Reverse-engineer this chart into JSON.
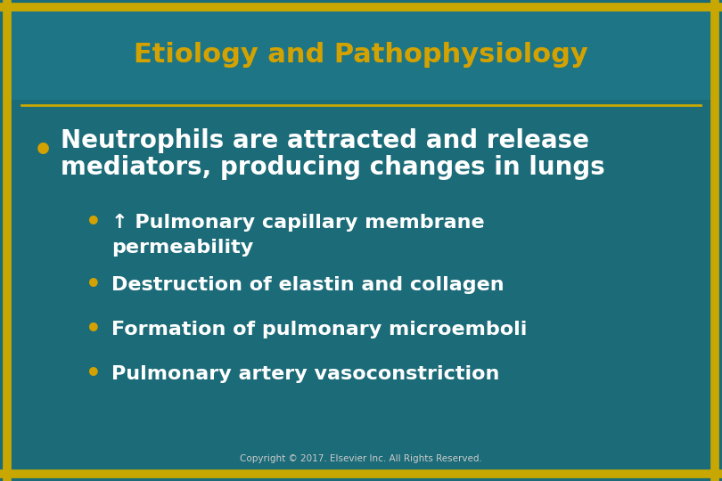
{
  "title": "Etiology and Pathophysiology",
  "title_color": "#D4A200",
  "title_fontsize": 22,
  "background_color": "#1B6B78",
  "border_color": "#C8A800",
  "separator_color": "#C8A800",
  "main_bullet_line1": "Neutrophils are attracted and release",
  "main_bullet_line2": "mediators, producing changes in lungs",
  "main_bullet_color": "#ffffff",
  "main_bullet_fontsize": 20,
  "main_bullet_dot_color": "#D4A200",
  "sub_bullets": [
    "↑ Pulmonary capillary membrane\npermeability",
    "Destruction of elastin and collagen",
    "Formation of pulmonary microemboli",
    "Pulmonary artery vasoconstriction"
  ],
  "sub_bullet_color": "#ffffff",
  "sub_bullet_fontsize": 16,
  "sub_bullet_dot_color": "#D4A200",
  "copyright_text": "Copyright © 2017. Elsevier Inc. All Rights Reserved.",
  "copyright_color": "#cccccc",
  "copyright_fontsize": 7.5,
  "fig_width": 8.1,
  "fig_height": 5.4,
  "dpi": 100
}
